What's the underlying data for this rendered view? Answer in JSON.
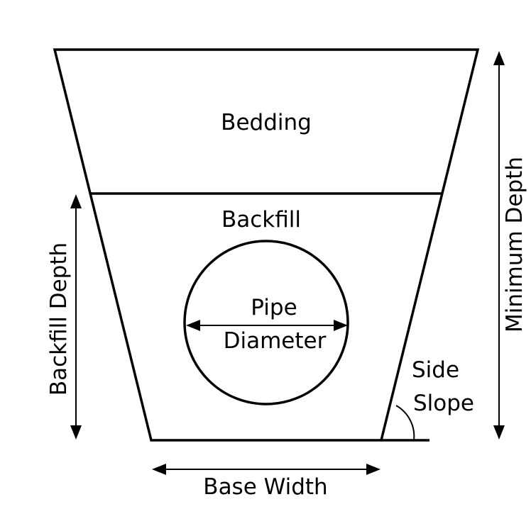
{
  "labels": {
    "bedding": "Bedding",
    "backfill": "Backfill",
    "pipe_line1": "Pipe",
    "pipe_line2": "Diameter",
    "side_line1": "Side",
    "side_line2": "Slope",
    "base_width": "Base Width",
    "backfill_depth": "Backfill Depth",
    "minimum_depth": "Minimum Depth"
  },
  "colors": {
    "stroke": "#000000",
    "background": "#ffffff"
  }
}
